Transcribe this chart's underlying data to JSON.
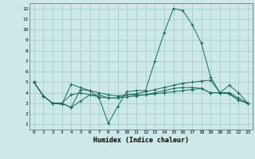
{
  "xlabel": "Humidex (Indice chaleur)",
  "background_color": "#cce8e8",
  "grid_color": "#aacccc",
  "line_color": "#1a6b5a",
  "x_ticks": [
    0,
    1,
    2,
    3,
    4,
    5,
    6,
    7,
    8,
    9,
    10,
    11,
    12,
    13,
    14,
    15,
    16,
    17,
    18,
    19,
    20,
    21,
    22,
    23
  ],
  "y_ticks": [
    1,
    2,
    3,
    4,
    5,
    6,
    7,
    8,
    9,
    10,
    11,
    12
  ],
  "ylim": [
    0.5,
    12.5
  ],
  "xlim": [
    -0.5,
    23.5
  ],
  "series": [
    {
      "x": [
        0,
        1,
        2,
        3,
        4,
        5,
        6,
        7,
        8,
        9,
        10,
        11,
        12,
        13,
        14,
        15,
        16,
        17,
        18,
        19,
        20,
        21,
        22,
        23
      ],
      "y": [
        5.0,
        3.7,
        3.0,
        3.0,
        2.6,
        4.3,
        4.2,
        3.5,
        1.1,
        2.7,
        4.1,
        4.2,
        4.2,
        7.0,
        9.7,
        12.0,
        11.8,
        10.5,
        8.7,
        5.5,
        4.0,
        4.7,
        4.0,
        3.0
      ]
    },
    {
      "x": [
        0,
        1,
        2,
        3,
        4,
        5,
        6,
        7,
        8,
        9,
        10,
        11,
        12,
        13,
        14,
        15,
        16,
        17,
        18,
        19,
        20,
        21,
        22,
        23
      ],
      "y": [
        5.0,
        3.7,
        3.0,
        2.9,
        4.8,
        4.5,
        4.2,
        4.0,
        3.8,
        3.7,
        3.8,
        3.9,
        4.1,
        4.3,
        4.5,
        4.7,
        4.9,
        5.0,
        5.1,
        5.2,
        4.0,
        4.0,
        3.5,
        3.0
      ]
    },
    {
      "x": [
        0,
        1,
        2,
        3,
        4,
        5,
        6,
        7,
        8,
        9,
        10,
        11,
        12,
        13,
        14,
        15,
        16,
        17,
        18,
        19,
        20,
        21,
        22,
        23
      ],
      "y": [
        5.0,
        3.7,
        3.0,
        3.0,
        3.8,
        4.0,
        3.8,
        3.6,
        3.5,
        3.5,
        3.6,
        3.7,
        3.8,
        3.9,
        4.0,
        4.1,
        4.2,
        4.3,
        4.4,
        4.0,
        4.0,
        3.9,
        3.3,
        3.0
      ]
    },
    {
      "x": [
        0,
        1,
        2,
        3,
        4,
        5,
        6,
        7,
        8,
        9,
        10,
        11,
        12,
        13,
        14,
        15,
        16,
        17,
        18,
        19,
        20,
        21,
        22,
        23
      ],
      "y": [
        5.0,
        3.7,
        3.0,
        3.0,
        2.6,
        3.2,
        3.8,
        3.8,
        3.5,
        3.5,
        3.8,
        3.8,
        3.8,
        4.0,
        4.2,
        4.4,
        4.5,
        4.5,
        4.4,
        4.0,
        4.0,
        3.9,
        3.3,
        3.0
      ]
    }
  ]
}
